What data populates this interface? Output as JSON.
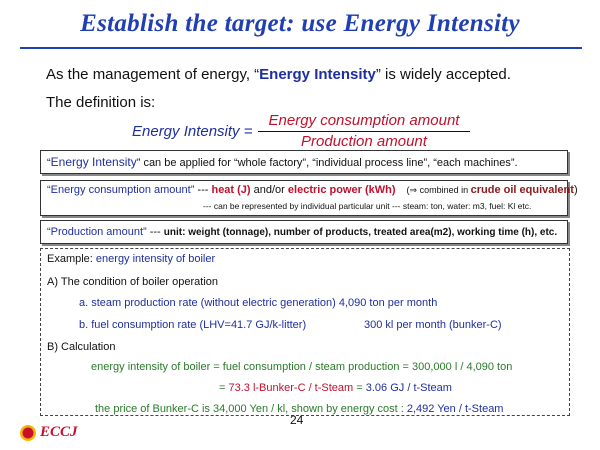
{
  "title": "Establish the target: use Energy Intensity",
  "intro": {
    "before": "As the management of energy, “",
    "keyword": "Energy Intensity",
    "after": "” is widely accepted."
  },
  "definition": "The definition is:",
  "formula": {
    "label": "Energy Intensity =",
    "numerator": "Energy consumption amount",
    "denominator": "Production amount"
  },
  "box1": {
    "open_quote": "“",
    "keyword": "Energy Intensity",
    "rest": "” can be applied for “whole factory”, “individual process line”, “each machines”."
  },
  "box2": {
    "term": "“Energy consumption amount”",
    "sep": " --- ",
    "heat": "heat (J)",
    "andor": " and/or ",
    "power": "electric power (kWh)",
    "combined_prefix": "(⇒ combined in ",
    "combined_keyword": "crude oil equivalent",
    "combined_suffix": ")",
    "line2": "--- can be represented by individual particular unit --- steam: ton, water: m3, fuel: Kl etc."
  },
  "box3": {
    "term": "“Production amount”",
    "sep": " --- ",
    "rest": "unit: weight (tonnage), number of products, treated area(m2), working time (h), etc."
  },
  "example": {
    "heading_prefix": "Example: ",
    "heading_text": "energy intensity of boiler",
    "a_heading": "A) The condition of boiler operation",
    "a_line1": "a. steam production rate (without electric generation) 4,090 ton per month",
    "a_line2_left": "b. fuel consumption rate (LHV=41.7 GJ/k-litter)",
    "a_line2_right": "300 kl per month   (bunker-C)",
    "b_heading": "B) Calculation",
    "calc_line1": "energy intensity of boiler = fuel consumption / steam production = 300,000 l / 4,090 ton",
    "calc_eq": "= ",
    "calc_val1": "73.3 l-Bunker-C / t-Steam",
    "calc_eq2": " = ",
    "calc_val2": "3.06 GJ / t-Steam",
    "price_text": "the price of Bunker-C is 34,000 Yen / kl,    shown by energy cost : ",
    "price_val": "2,492 Yen / t-Steam"
  },
  "page_number": "24",
  "logo_text": "ECCJ",
  "colors": {
    "title_blue": "#1f3fb3",
    "keyword_blue": "#1f2f9f",
    "accent_red": "#c0102b",
    "example_green": "#2a7a2a"
  }
}
